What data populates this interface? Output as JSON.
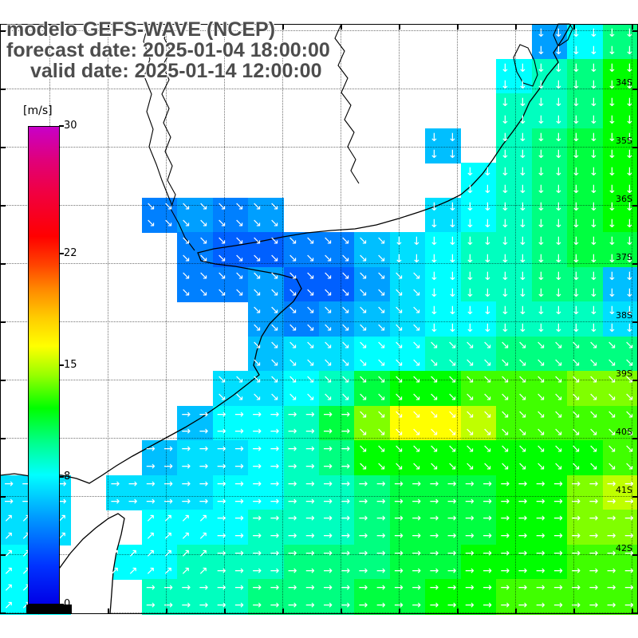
{
  "title": {
    "line1": "modelo GEFS-WAVE (NCEP)",
    "line2": "forecast date: 2025-01-04 18:00:00",
    "line3": "valid date: 2025-01-14 12:00:00"
  },
  "colorbar": {
    "unit_label": "[m/s]",
    "min": 0,
    "max": 30,
    "ticks": [
      30,
      22,
      15,
      8,
      0
    ],
    "bottom_color": "#0000e6",
    "top_color": "#c800c8"
  },
  "map": {
    "lat_labels": [
      "34S",
      "35S",
      "36S",
      "37S",
      "38S",
      "39S",
      "40S",
      "41S",
      "42S"
    ]
  },
  "chart_data": {
    "type": "heatmap",
    "title": "modelo GEFS-WAVE (NCEP)",
    "field": "surface wind speed with direction arrows over Rio de la Plata / SW Atlantic",
    "units": "m/s",
    "value_range": [
      0,
      30
    ],
    "grid_cols": 18,
    "grid_rows": 17,
    "no_data_value": -1,
    "speeds": [
      [
        -1,
        -1,
        -1,
        -1,
        -1,
        -1,
        -1,
        -1,
        -1,
        -1,
        -1,
        -1,
        -1,
        -1,
        -1,
        5,
        8,
        10
      ],
      [
        -1,
        -1,
        -1,
        -1,
        -1,
        -1,
        -1,
        -1,
        -1,
        -1,
        -1,
        -1,
        -1,
        -1,
        8,
        9,
        10,
        12
      ],
      [
        -1,
        -1,
        -1,
        -1,
        -1,
        -1,
        -1,
        -1,
        -1,
        -1,
        -1,
        -1,
        -1,
        -1,
        9,
        9,
        10,
        12
      ],
      [
        -1,
        -1,
        -1,
        -1,
        -1,
        -1,
        -1,
        -1,
        -1,
        -1,
        -1,
        -1,
        6,
        -1,
        9,
        10,
        11,
        12
      ],
      [
        -1,
        -1,
        -1,
        -1,
        -1,
        -1,
        -1,
        -1,
        -1,
        -1,
        -1,
        -1,
        -1,
        8,
        9,
        10,
        11,
        12
      ],
      [
        -1,
        -1,
        -1,
        -1,
        4,
        5,
        4,
        5,
        -1,
        -1,
        -1,
        -1,
        7,
        8,
        9,
        10,
        11,
        12
      ],
      [
        -1,
        -1,
        -1,
        -1,
        -1,
        4,
        3,
        3,
        4,
        4,
        6,
        7,
        8,
        9,
        9,
        10,
        11,
        11
      ],
      [
        -1,
        -1,
        -1,
        -1,
        -1,
        4,
        4,
        5,
        3,
        3,
        5,
        7,
        8,
        9,
        9,
        10,
        10,
        6
      ],
      [
        -1,
        -1,
        -1,
        -1,
        -1,
        -1,
        -1,
        5,
        4,
        5,
        6,
        7,
        8,
        8,
        9,
        9,
        9,
        7
      ],
      [
        -1,
        -1,
        -1,
        -1,
        -1,
        -1,
        -1,
        6,
        7,
        7,
        8,
        8,
        9,
        9,
        10,
        10,
        10,
        10
      ],
      [
        -1,
        -1,
        -1,
        -1,
        -1,
        -1,
        7,
        7,
        8,
        9,
        11,
        12,
        12,
        13,
        13,
        13,
        14,
        14
      ],
      [
        -1,
        -1,
        -1,
        -1,
        -1,
        6,
        8,
        8,
        9,
        11,
        14,
        16,
        16,
        15,
        13,
        13,
        13,
        13
      ],
      [
        -1,
        -1,
        -1,
        -1,
        6,
        7,
        7,
        8,
        9,
        10,
        12,
        12,
        12,
        12,
        12,
        12,
        12,
        13
      ],
      [
        7,
        7,
        -1,
        7,
        7,
        7,
        8,
        8,
        9,
        9,
        10,
        11,
        11,
        11,
        12,
        12,
        14,
        15
      ],
      [
        7,
        7,
        -1,
        -1,
        8,
        8,
        8,
        9,
        9,
        9,
        10,
        11,
        11,
        11,
        12,
        12,
        14,
        14
      ],
      [
        8,
        -1,
        -1,
        8,
        8,
        9,
        9,
        9,
        10,
        10,
        10,
        11,
        11,
        12,
        12,
        12,
        13,
        13
      ],
      [
        8,
        8,
        -1,
        -1,
        9,
        9,
        9,
        10,
        10,
        10,
        11,
        11,
        12,
        12,
        13,
        13,
        13,
        13
      ]
    ],
    "directions_8way": [
      "222222222222222222",
      "222222222222222222",
      "222222222222222222",
      "222222222222222222",
      "222222222222222222",
      "222211111112222222",
      "222211111112222222",
      "222211111111222222",
      "222211111111222222",
      "222222111111111111",
      "111111111111111111",
      "000000000011111111",
      "000000000011111111",
      "000000000000000000",
      "777777000000000000",
      "777777000000000000",
      "777700000000000000"
    ],
    "direction_legend": "arrow points: 0=E 1=SE 2=S 3=SW 4=W 5=NW 6=N 7=NE"
  }
}
